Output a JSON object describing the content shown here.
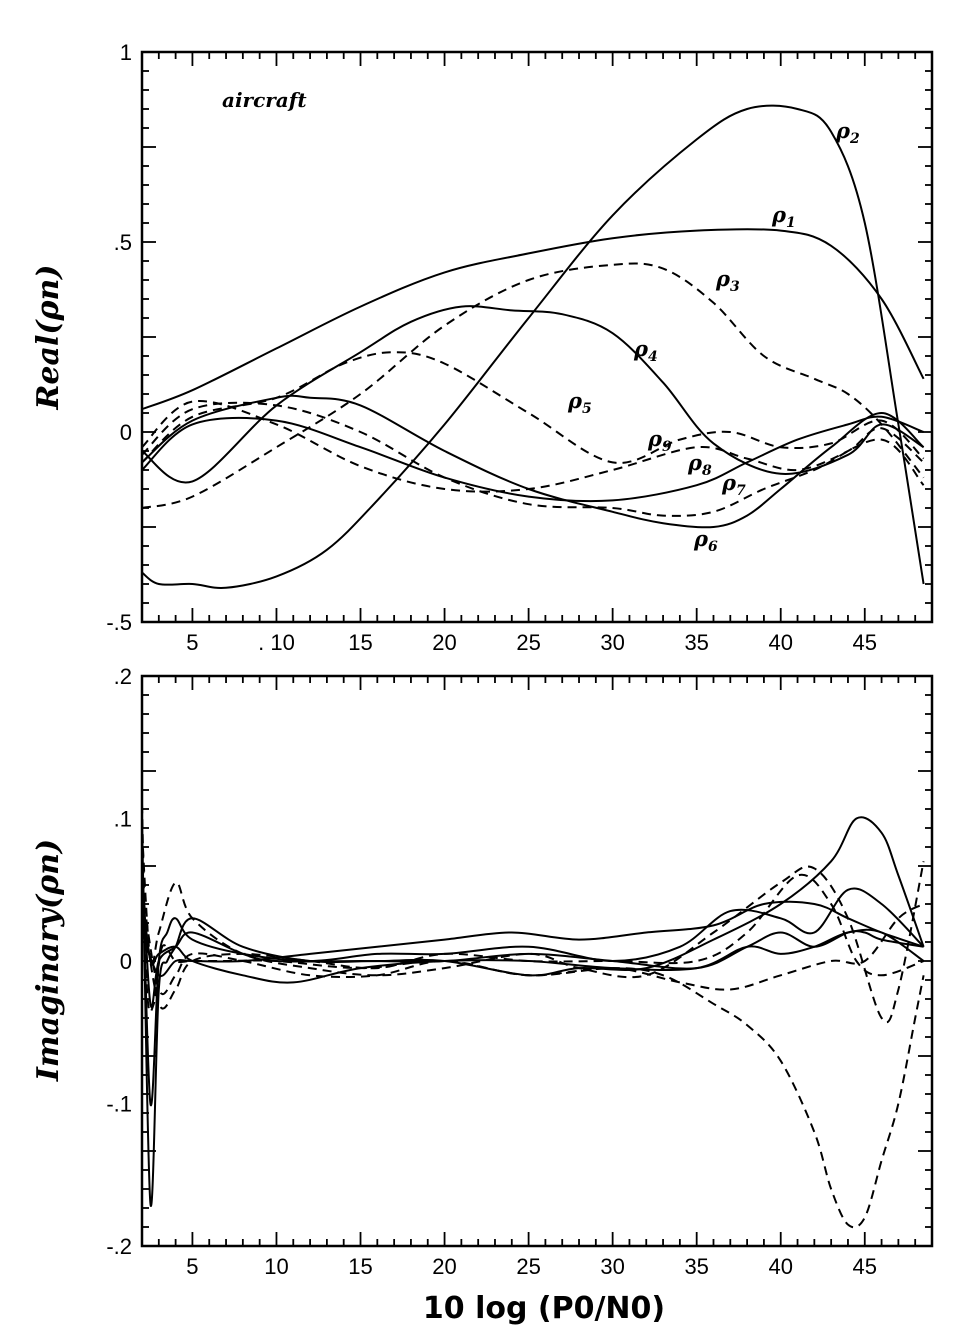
{
  "chart_data": [
    {
      "type": "line",
      "ylabel": "Real(ρn)",
      "annotation": "aircraft",
      "xlim": [
        2,
        49
      ],
      "ylim": [
        -0.5,
        1
      ],
      "xticks": [
        5,
        10,
        15,
        20,
        25,
        30,
        35,
        40,
        45
      ],
      "xtick_labels": [
        "5",
        ". 10",
        "15",
        "20",
        "25",
        "30",
        "35",
        "40",
        "45"
      ],
      "yticks": [
        -0.5,
        0,
        0.5,
        1
      ],
      "ytick_labels": [
        "-.5",
        "0",
        ".5",
        "1"
      ],
      "series": [
        {
          "name": "ρ1",
          "style": "solid",
          "x": [
            2,
            5,
            10,
            15,
            20,
            25,
            30,
            35,
            40,
            43,
            46,
            48.5
          ],
          "y": [
            0.06,
            0.11,
            0.22,
            0.33,
            0.42,
            0.47,
            0.51,
            0.53,
            0.53,
            0.49,
            0.35,
            0.14
          ]
        },
        {
          "name": "ρ2",
          "style": "solid",
          "x": [
            2,
            3,
            5,
            7,
            10,
            13,
            16,
            20,
            25,
            30,
            35,
            38,
            41,
            43,
            45,
            47,
            48.5
          ],
          "y": [
            -0.37,
            -0.4,
            -0.4,
            -0.41,
            -0.38,
            -0.31,
            -0.18,
            0.02,
            0.3,
            0.57,
            0.77,
            0.85,
            0.85,
            0.79,
            0.55,
            0.02,
            -0.4
          ]
        },
        {
          "name": "ρ3",
          "style": "dashed",
          "x": [
            2,
            5,
            10,
            15,
            20,
            25,
            30,
            33,
            36,
            39,
            42,
            44,
            46,
            48.5
          ],
          "y": [
            -0.2,
            -0.17,
            -0.04,
            0.1,
            0.28,
            0.4,
            0.44,
            0.43,
            0.34,
            0.2,
            0.14,
            0.1,
            0.02,
            -0.12
          ]
        },
        {
          "name": "ρ4",
          "style": "solid",
          "x": [
            2,
            5,
            10,
            15,
            18,
            21,
            24,
            27,
            30,
            33,
            36,
            40,
            44,
            46,
            48.5
          ],
          "y": [
            -0.05,
            -0.13,
            0.07,
            0.21,
            0.29,
            0.33,
            0.32,
            0.31,
            0.26,
            0.13,
            -0.03,
            -0.11,
            -0.06,
            0.02,
            -0.04
          ]
        },
        {
          "name": "ρ5",
          "style": "dashed",
          "x": [
            2,
            5,
            10,
            14,
            17,
            20,
            25,
            30,
            34,
            37,
            40,
            43,
            46,
            48.5
          ],
          "y": [
            -0.08,
            0.04,
            0.09,
            0.18,
            0.21,
            0.18,
            0.05,
            -0.08,
            -0.02,
            0.0,
            -0.04,
            -0.03,
            0.03,
            -0.07
          ]
        },
        {
          "name": "ρ6",
          "style": "solid",
          "x": [
            2,
            5,
            10,
            12,
            15,
            20,
            25,
            30,
            33,
            36,
            38,
            40,
            43,
            46,
            48.5
          ],
          "y": [
            -0.08,
            0.03,
            0.09,
            0.09,
            0.07,
            -0.05,
            -0.15,
            -0.21,
            -0.24,
            -0.25,
            -0.22,
            -0.15,
            -0.04,
            0.05,
            -0.04
          ]
        },
        {
          "name": "ρ7",
          "style": "dashed",
          "x": [
            2,
            5,
            10,
            15,
            20,
            25,
            30,
            33,
            36,
            39,
            42,
            46,
            48.5
          ],
          "y": [
            -0.06,
            0.06,
            0.07,
            0.0,
            -0.12,
            -0.19,
            -0.2,
            -0.22,
            -0.21,
            -0.15,
            -0.1,
            -0.02,
            -0.14
          ]
        },
        {
          "name": "ρ8",
          "style": "solid",
          "x": [
            2,
            5,
            10,
            15,
            20,
            25,
            30,
            35,
            38,
            41,
            44,
            46,
            48.5
          ],
          "y": [
            -0.1,
            0.02,
            0.03,
            -0.04,
            -0.12,
            -0.17,
            -0.18,
            -0.14,
            -0.08,
            -0.02,
            0.02,
            0.04,
            0.0
          ]
        },
        {
          "name": "ρ9",
          "style": "dashed",
          "x": [
            2,
            5,
            10,
            15,
            20,
            25,
            30,
            35,
            38,
            41,
            44,
            46,
            48.5
          ],
          "y": [
            -0.04,
            0.08,
            0.02,
            -0.09,
            -0.15,
            -0.15,
            -0.1,
            -0.04,
            -0.07,
            -0.1,
            -0.05,
            0.01,
            -0.08
          ]
        }
      ]
    },
    {
      "type": "line",
      "ylabel": "Imaginary(ρn)",
      "xlabel": "10 log (P0/N0)",
      "xlim": [
        2,
        49
      ],
      "ylim": [
        -0.2,
        0.2
      ],
      "xticks": [
        5,
        10,
        15,
        20,
        25,
        30,
        35,
        40,
        45
      ],
      "xtick_labels": [
        "5",
        "10",
        "15",
        "20",
        "25",
        "30",
        "35",
        "40",
        "45"
      ],
      "yticks": [
        -0.2,
        -0.1,
        0,
        0.1,
        0.2
      ],
      "ytick_labels": [
        "-.2",
        "-.1",
        "0",
        ".1",
        ".2"
      ],
      "series": [
        {
          "style": "dashed",
          "x": [
            2,
            2.3,
            2.7,
            3.2,
            4,
            5,
            7,
            10,
            15,
            20,
            25,
            30,
            33,
            36,
            38,
            40,
            42,
            43,
            44,
            45,
            46,
            47,
            48,
            48.5
          ],
          "y": [
            0.11,
            -0.02,
            -0.03,
            0.01,
            0.0,
            0.0,
            0.0,
            0.0,
            -0.005,
            0.0,
            -0.01,
            -0.005,
            -0.01,
            -0.03,
            -0.045,
            -0.07,
            -0.12,
            -0.16,
            -0.185,
            -0.18,
            -0.14,
            -0.1,
            -0.04,
            -0.01
          ]
        },
        {
          "style": "solid",
          "x": [
            2,
            2.5,
            3,
            3.5,
            4,
            5,
            8,
            12,
            16,
            20,
            25,
            28,
            32,
            36,
            40,
            43,
            44.5,
            46,
            47,
            48.5
          ],
          "y": [
            0.1,
            -0.17,
            -0.02,
            0.0,
            0.01,
            0.03,
            0.01,
            0.0,
            0.0,
            0.0,
            -0.01,
            -0.005,
            -0.005,
            0.015,
            0.04,
            0.07,
            0.1,
            0.09,
            0.06,
            0.01
          ]
        },
        {
          "style": "solid",
          "x": [
            2,
            2.5,
            3,
            3.5,
            4,
            5,
            8,
            12,
            16,
            20,
            25,
            30,
            34,
            37,
            40,
            42,
            44,
            46,
            48.5
          ],
          "y": [
            0.08,
            -0.1,
            0.0,
            0.02,
            0.03,
            0.015,
            0.005,
            0.0,
            0.005,
            0.005,
            0.01,
            0.0,
            0.01,
            0.035,
            0.03,
            0.02,
            0.05,
            0.04,
            0.01
          ]
        },
        {
          "style": "solid",
          "x": [
            2,
            2.5,
            3,
            4,
            5,
            8,
            10,
            15,
            20,
            25,
            30,
            35,
            38,
            40,
            42,
            44,
            45,
            46,
            48.5
          ],
          "y": [
            0.07,
            -0.03,
            0.0,
            0.01,
            0.02,
            0.005,
            0.0,
            0.0,
            0.0,
            0.005,
            0.0,
            -0.005,
            0.01,
            0.02,
            0.01,
            0.02,
            0.02,
            0.015,
            0.01
          ]
        },
        {
          "style": "solid",
          "x": [
            2,
            2.5,
            3,
            4,
            5,
            8,
            11,
            15,
            20,
            25,
            30,
            35,
            38,
            40,
            42,
            44,
            46,
            48.5
          ],
          "y": [
            0.05,
            0.0,
            0.005,
            0.01,
            0.0,
            -0.01,
            -0.015,
            -0.005,
            0.0,
            0.0,
            -0.005,
            -0.005,
            0.01,
            0.005,
            0.01,
            0.02,
            0.02,
            0.0
          ]
        },
        {
          "style": "solid",
          "x": [
            2,
            3,
            4,
            5,
            8,
            12,
            16,
            20,
            24,
            28,
            32,
            36,
            39,
            42,
            44,
            46,
            48.5
          ],
          "y": [
            0.02,
            -0.01,
            0.0,
            0.0,
            0.0,
            0.005,
            0.01,
            0.015,
            0.02,
            0.015,
            0.02,
            0.025,
            0.04,
            0.04,
            0.03,
            0.02,
            0.01
          ]
        },
        {
          "style": "dashed",
          "x": [
            2,
            2.5,
            3,
            4,
            5,
            8,
            12,
            16,
            20,
            25,
            28,
            32,
            36,
            40,
            42,
            44,
            46,
            47,
            48.5
          ],
          "y": [
            0.09,
            0.0,
            0.02,
            0.055,
            0.03,
            0.005,
            -0.005,
            -0.01,
            -0.005,
            0.005,
            -0.005,
            -0.01,
            0.02,
            0.055,
            0.065,
            0.03,
            -0.04,
            -0.02,
            0.07
          ]
        },
        {
          "style": "dashed",
          "x": [
            2,
            3,
            4,
            5,
            8,
            12,
            16,
            20,
            25,
            30,
            34,
            37,
            40,
            43,
            45,
            47,
            48.5
          ],
          "y": [
            0.05,
            -0.02,
            -0.01,
            0.005,
            0.0,
            -0.01,
            -0.01,
            0.0,
            -0.01,
            -0.005,
            -0.015,
            -0.02,
            -0.01,
            0.0,
            0.0,
            0.03,
            0.04
          ]
        },
        {
          "style": "dashed",
          "x": [
            2,
            3,
            4,
            5,
            8,
            12,
            16,
            20,
            25,
            30,
            35,
            38,
            41,
            43,
            44.5,
            46,
            48.5
          ],
          "y": [
            0.04,
            -0.03,
            -0.02,
            0.0,
            0.005,
            0.0,
            -0.005,
            0.005,
            0.0,
            0.0,
            0.0,
            0.02,
            0.06,
            0.04,
            0.0,
            -0.01,
            0.0
          ]
        }
      ]
    }
  ]
}
